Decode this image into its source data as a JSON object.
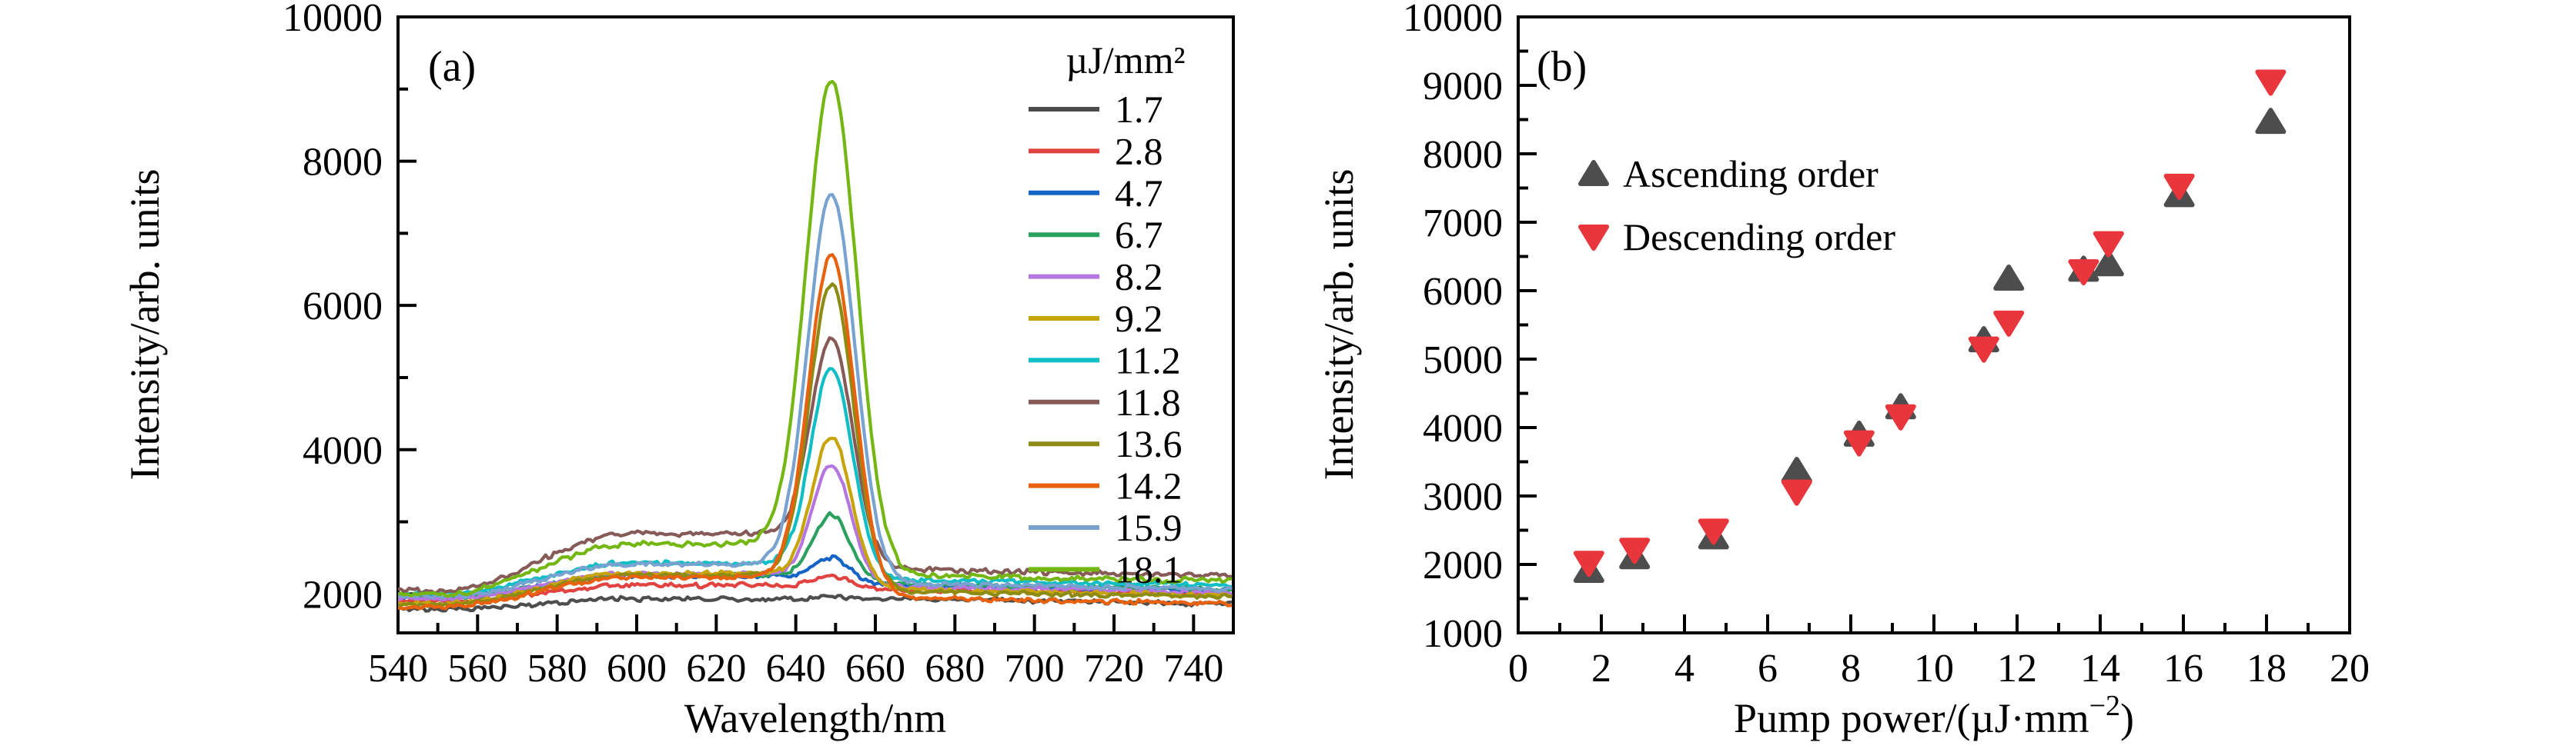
{
  "figure": {
    "background": "#ffffff",
    "panel_a_letter": "(a)",
    "panel_b_letter": "(b)"
  },
  "chart_data": [
    {
      "id": "a",
      "type": "line",
      "panel_label": "(a)",
      "xlabel": "Wavelength/nm",
      "ylabel": "Intensity/arb. units",
      "xlim": [
        540,
        750
      ],
      "ylim": [
        1460,
        10000
      ],
      "x_ticks": [
        540,
        560,
        580,
        600,
        620,
        640,
        660,
        680,
        700,
        720,
        740
      ],
      "x_minor_ticks": [
        550,
        570,
        590,
        610,
        630,
        650,
        670,
        690,
        710,
        730,
        750
      ],
      "y_ticks": [
        2000,
        4000,
        6000,
        8000,
        10000
      ],
      "y_minor_ticks": [
        3000,
        5000,
        7000,
        9000
      ],
      "grid": false,
      "legend_title": "µJ/mm²",
      "legend_position": "inside-right",
      "peak_center_nm": 649,
      "series": [
        {
          "label": "1.7",
          "color": "#4d4d4d",
          "base_start": 1790,
          "base_hump": 1930,
          "base_end": 1930,
          "peak": 1965
        },
        {
          "label": "2.8",
          "color": "#e04340",
          "base_start": 1900,
          "base_hump": 2120,
          "base_end": 2060,
          "peak": 2250
        },
        {
          "label": "4.7",
          "color": "#1565c8",
          "base_start": 1950,
          "base_hump": 2250,
          "base_end": 2120,
          "peak": 2500
        },
        {
          "label": "6.7",
          "color": "#2aa15f",
          "base_start": 1950,
          "base_hump": 2260,
          "base_end": 2130,
          "peak": 3100
        },
        {
          "label": "8.2",
          "color": "#b576e0",
          "base_start": 1930,
          "base_hump": 2280,
          "base_end": 2090,
          "peak": 3800
        },
        {
          "label": "9.2",
          "color": "#c7a40a",
          "base_start": 1870,
          "base_hump": 2290,
          "base_end": 2050,
          "peak": 4180
        },
        {
          "label": "11.2",
          "color": "#10bec6",
          "base_start": 2010,
          "base_hump": 2430,
          "base_end": 2190,
          "peak": 5150
        },
        {
          "label": "11.8",
          "color": "#855a57",
          "base_start": 2050,
          "base_hump": 2840,
          "base_end": 2330,
          "peak": 5550
        },
        {
          "label": "13.6",
          "color": "#8c8c14",
          "base_start": 1850,
          "base_hump": 2260,
          "base_end": 2030,
          "peak": 6300
        },
        {
          "label": "14.2",
          "color": "#e8610e",
          "base_start": 1820,
          "base_hump": 2230,
          "base_end": 1940,
          "peak": 6700
        },
        {
          "label": "15.9",
          "color": "#78a2cf",
          "base_start": 1970,
          "base_hump": 2410,
          "base_end": 2140,
          "peak": 7550
        },
        {
          "label": "18.1",
          "color": "#74b713",
          "base_start": 2000,
          "base_hump": 2690,
          "base_end": 2250,
          "peak": 9100
        }
      ]
    },
    {
      "id": "b",
      "type": "scatter",
      "panel_label": "(b)",
      "xlabel_prefix": "Pump power/(µJ·mm",
      "xlabel_sup": "−2",
      "xlabel_suffix": ")",
      "ylabel": "Intensity/arb. units",
      "xlim": [
        0,
        20
      ],
      "ylim": [
        1000,
        10000
      ],
      "x_ticks": [
        0,
        2,
        4,
        6,
        8,
        10,
        12,
        14,
        16,
        18,
        20
      ],
      "x_minor_ticks": [
        1,
        3,
        5,
        7,
        9,
        11,
        13,
        15,
        17,
        19
      ],
      "y_ticks": [
        1000,
        2000,
        3000,
        4000,
        5000,
        6000,
        7000,
        8000,
        9000,
        10000
      ],
      "y_minor_ticks": [
        1500,
        2500,
        3500,
        4500,
        5500,
        6500,
        7500,
        8500,
        9500
      ],
      "grid": false,
      "legend_position": "upper-left-inside",
      "series": [
        {
          "name": "Ascending order",
          "marker": "triangle-up",
          "color": "#4d4d4d",
          "x": [
            1.7,
            2.8,
            4.7,
            6.7,
            8.2,
            9.2,
            11.2,
            11.8,
            13.6,
            14.2,
            15.9,
            18.1
          ],
          "y": [
            1910,
            2110,
            2400,
            3370,
            3900,
            4300,
            5280,
            6180,
            6310,
            6390,
            7400,
            8470
          ]
        },
        {
          "name": "Descending order",
          "marker": "triangle-down",
          "color": "#e8363c",
          "x": [
            1.7,
            2.8,
            4.7,
            6.7,
            8.2,
            9.2,
            11.2,
            11.8,
            13.6,
            14.2,
            15.9,
            18.1
          ],
          "y": [
            2020,
            2210,
            2490,
            3060,
            3780,
            4160,
            5150,
            5530,
            6280,
            6690,
            7530,
            9050
          ]
        }
      ]
    }
  ]
}
